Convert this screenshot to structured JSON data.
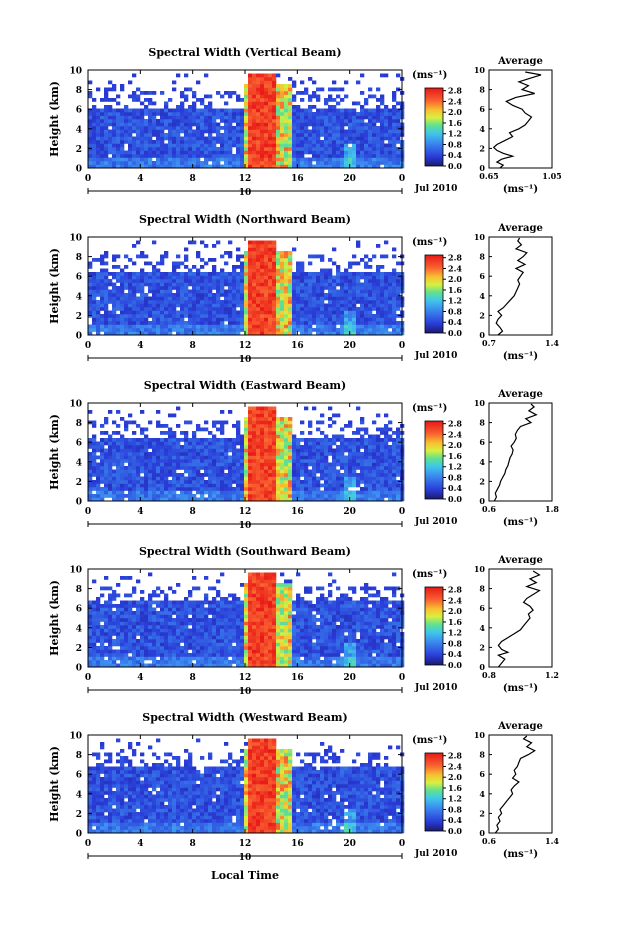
{
  "figure": {
    "xlabel": "Local Time",
    "date_label": "Jul 2010",
    "date_day": "10"
  },
  "chart_data": [
    {
      "type": "heatmap",
      "title": "Spectral Width (Vertical Beam)",
      "ylabel": "Height (km)",
      "xlabel": "Local Time",
      "x_ticks": [
        "0",
        "4",
        "8",
        "12",
        "16",
        "20",
        "0"
      ],
      "y_ticks": [
        "0",
        "2",
        "4",
        "6",
        "8",
        "10"
      ],
      "xlim": [
        0,
        24
      ],
      "ylim": [
        0,
        10
      ],
      "colorbar": {
        "unit": "(ms⁻¹)",
        "ticks": [
          "0.0",
          "0.4",
          "0.8",
          "1.2",
          "1.6",
          "2.0",
          "2.4",
          "2.8"
        ],
        "range": [
          0,
          2.9
        ]
      },
      "avg": {
        "title": "Average",
        "xlabel": "(ms⁻¹)",
        "x_ticks": [
          "0.65",
          "1.05"
        ],
        "xlim": [
          0.65,
          1.05
        ],
        "profile": [
          [
            0.0,
            0.72
          ],
          [
            0.3,
            0.74
          ],
          [
            0.6,
            0.7
          ],
          [
            0.9,
            0.73
          ],
          [
            1.2,
            0.8
          ],
          [
            1.5,
            0.74
          ],
          [
            1.8,
            0.7
          ],
          [
            2.1,
            0.68
          ],
          [
            2.4,
            0.7
          ],
          [
            2.8,
            0.75
          ],
          [
            3.2,
            0.8
          ],
          [
            3.6,
            0.78
          ],
          [
            4.0,
            0.84
          ],
          [
            4.4,
            0.88
          ],
          [
            4.8,
            0.9
          ],
          [
            5.2,
            0.92
          ],
          [
            5.6,
            0.88
          ],
          [
            6.0,
            0.86
          ],
          [
            6.4,
            0.8
          ],
          [
            6.8,
            0.76
          ],
          [
            7.2,
            0.82
          ],
          [
            7.6,
            0.94
          ],
          [
            8.0,
            0.86
          ],
          [
            8.4,
            0.9
          ],
          [
            8.8,
            0.84
          ],
          [
            9.2,
            0.92
          ],
          [
            9.5,
            0.98
          ],
          [
            9.8,
            0.88
          ]
        ]
      }
    },
    {
      "type": "heatmap",
      "title": "Spectral Width (Northward Beam)",
      "ylabel": "Height (km)",
      "xlabel": "Local Time",
      "x_ticks": [
        "0",
        "4",
        "8",
        "12",
        "16",
        "20",
        "0"
      ],
      "y_ticks": [
        "0",
        "2",
        "4",
        "6",
        "8",
        "10"
      ],
      "xlim": [
        0,
        24
      ],
      "ylim": [
        0,
        10
      ],
      "colorbar": {
        "unit": "(ms⁻¹)",
        "ticks": [
          "0.0",
          "0.4",
          "0.8",
          "1.2",
          "1.6",
          "2.0",
          "2.4",
          "2.8"
        ],
        "range": [
          0,
          2.9
        ]
      },
      "avg": {
        "title": "Average",
        "xlabel": "(ms⁻¹)",
        "x_ticks": [
          "0.7",
          "1.4"
        ],
        "xlim": [
          0.7,
          1.4
        ],
        "profile": [
          [
            0.0,
            0.8
          ],
          [
            0.4,
            0.85
          ],
          [
            0.8,
            0.82
          ],
          [
            1.2,
            0.78
          ],
          [
            1.6,
            0.8
          ],
          [
            2.0,
            0.84
          ],
          [
            2.4,
            0.8
          ],
          [
            2.8,
            0.86
          ],
          [
            3.2,
            0.9
          ],
          [
            3.6,
            0.94
          ],
          [
            4.0,
            0.98
          ],
          [
            4.4,
            1.0
          ],
          [
            4.8,
            1.02
          ],
          [
            5.2,
            1.04
          ],
          [
            5.6,
            1.02
          ],
          [
            6.0,
            1.05
          ],
          [
            6.4,
            1.08
          ],
          [
            6.8,
            1.0
          ],
          [
            7.2,
            1.1
          ],
          [
            7.6,
            1.02
          ],
          [
            8.0,
            1.08
          ],
          [
            8.4,
            1.12
          ],
          [
            8.8,
            1.0
          ],
          [
            9.2,
            1.06
          ],
          [
            9.6,
            1.02
          ],
          [
            9.9,
            1.04
          ]
        ]
      }
    },
    {
      "type": "heatmap",
      "title": "Spectral Width (Eastward Beam)",
      "ylabel": "Height (km)",
      "xlabel": "Local Time",
      "x_ticks": [
        "0",
        "4",
        "8",
        "12",
        "16",
        "20",
        "0"
      ],
      "y_ticks": [
        "0",
        "2",
        "4",
        "6",
        "8",
        "10"
      ],
      "xlim": [
        0,
        24
      ],
      "ylim": [
        0,
        10
      ],
      "colorbar": {
        "unit": "(ms⁻¹)",
        "ticks": [
          "0.0",
          "0.4",
          "0.8",
          "1.2",
          "1.6",
          "2.0",
          "2.4",
          "2.8"
        ],
        "range": [
          0,
          2.9
        ]
      },
      "avg": {
        "title": "Average",
        "xlabel": "(ms⁻¹)",
        "x_ticks": [
          "0.6",
          "1.8"
        ],
        "xlim": [
          0.6,
          1.8
        ],
        "profile": [
          [
            0.0,
            0.7
          ],
          [
            0.4,
            0.74
          ],
          [
            0.8,
            0.72
          ],
          [
            1.2,
            0.76
          ],
          [
            1.6,
            0.8
          ],
          [
            2.0,
            0.82
          ],
          [
            2.4,
            0.86
          ],
          [
            2.8,
            0.9
          ],
          [
            3.2,
            0.92
          ],
          [
            3.6,
            0.96
          ],
          [
            4.0,
            0.98
          ],
          [
            4.4,
            1.0
          ],
          [
            4.8,
            1.04
          ],
          [
            5.2,
            1.06
          ],
          [
            5.6,
            1.02
          ],
          [
            6.0,
            1.08
          ],
          [
            6.4,
            1.12
          ],
          [
            6.8,
            1.1
          ],
          [
            7.2,
            1.14
          ],
          [
            7.6,
            1.2
          ],
          [
            8.0,
            1.4
          ],
          [
            8.4,
            1.3
          ],
          [
            8.8,
            1.5
          ],
          [
            9.2,
            1.36
          ],
          [
            9.6,
            1.46
          ],
          [
            9.9,
            1.4
          ]
        ]
      }
    },
    {
      "type": "heatmap",
      "title": "Spectral Width (Southward Beam)",
      "ylabel": "Height (km)",
      "xlabel": "Local Time",
      "x_ticks": [
        "0",
        "4",
        "8",
        "12",
        "16",
        "20",
        "0"
      ],
      "y_ticks": [
        "0",
        "2",
        "4",
        "6",
        "8",
        "10"
      ],
      "xlim": [
        0,
        24
      ],
      "ylim": [
        0,
        10
      ],
      "colorbar": {
        "unit": "(ms⁻¹)",
        "ticks": [
          "0.0",
          "0.4",
          "0.8",
          "1.2",
          "1.6",
          "2.0",
          "2.4",
          "2.8"
        ],
        "range": [
          0,
          2.9
        ]
      },
      "avg": {
        "title": "Average",
        "xlabel": "(ms⁻¹)",
        "x_ticks": [
          "0.8",
          "1.2"
        ],
        "xlim": [
          0.8,
          1.2
        ],
        "profile": [
          [
            0.0,
            0.86
          ],
          [
            0.4,
            0.88
          ],
          [
            0.8,
            0.9
          ],
          [
            1.2,
            0.86
          ],
          [
            1.5,
            0.92
          ],
          [
            1.8,
            0.88
          ],
          [
            2.2,
            0.86
          ],
          [
            2.6,
            0.88
          ],
          [
            3.0,
            0.92
          ],
          [
            3.4,
            0.96
          ],
          [
            3.8,
            1.0
          ],
          [
            4.2,
            1.02
          ],
          [
            4.6,
            1.04
          ],
          [
            5.0,
            1.06
          ],
          [
            5.4,
            1.05
          ],
          [
            5.8,
            1.08
          ],
          [
            6.2,
            1.06
          ],
          [
            6.6,
            1.02
          ],
          [
            7.0,
            1.04
          ],
          [
            7.4,
            1.08
          ],
          [
            7.8,
            1.12
          ],
          [
            8.2,
            1.04
          ],
          [
            8.6,
            1.1
          ],
          [
            9.0,
            1.06
          ],
          [
            9.4,
            1.12
          ],
          [
            9.8,
            1.08
          ]
        ]
      }
    },
    {
      "type": "heatmap",
      "title": "Spectral Width (Westward Beam)",
      "ylabel": "Height (km)",
      "xlabel": "Local Time",
      "x_ticks": [
        "0",
        "4",
        "8",
        "12",
        "16",
        "20",
        "0"
      ],
      "y_ticks": [
        "0",
        "2",
        "4",
        "6",
        "8",
        "10"
      ],
      "xlim": [
        0,
        24
      ],
      "ylim": [
        0,
        10
      ],
      "colorbar": {
        "unit": "(ms⁻¹)",
        "ticks": [
          "0.0",
          "0.4",
          "0.8",
          "1.2",
          "1.6",
          "2.0",
          "2.4",
          "2.8"
        ],
        "range": [
          0,
          2.9
        ]
      },
      "avg": {
        "title": "Average",
        "xlabel": "(ms⁻¹)",
        "x_ticks": [
          "0.6",
          "1.4"
        ],
        "xlim": [
          0.6,
          1.4
        ],
        "profile": [
          [
            0.0,
            0.68
          ],
          [
            0.4,
            0.72
          ],
          [
            0.8,
            0.7
          ],
          [
            1.2,
            0.74
          ],
          [
            1.6,
            0.72
          ],
          [
            2.0,
            0.76
          ],
          [
            2.4,
            0.74
          ],
          [
            2.8,
            0.78
          ],
          [
            3.2,
            0.82
          ],
          [
            3.6,
            0.86
          ],
          [
            4.0,
            0.9
          ],
          [
            4.4,
            0.88
          ],
          [
            4.8,
            0.92
          ],
          [
            5.2,
            0.98
          ],
          [
            5.6,
            0.9
          ],
          [
            6.0,
            0.94
          ],
          [
            6.4,
            0.92
          ],
          [
            6.8,
            0.96
          ],
          [
            7.2,
            0.98
          ],
          [
            7.6,
            1.0
          ],
          [
            8.0,
            1.1
          ],
          [
            8.4,
            1.18
          ],
          [
            8.8,
            1.08
          ],
          [
            9.2,
            1.14
          ],
          [
            9.6,
            1.04
          ],
          [
            9.9,
            1.08
          ]
        ]
      }
    }
  ]
}
